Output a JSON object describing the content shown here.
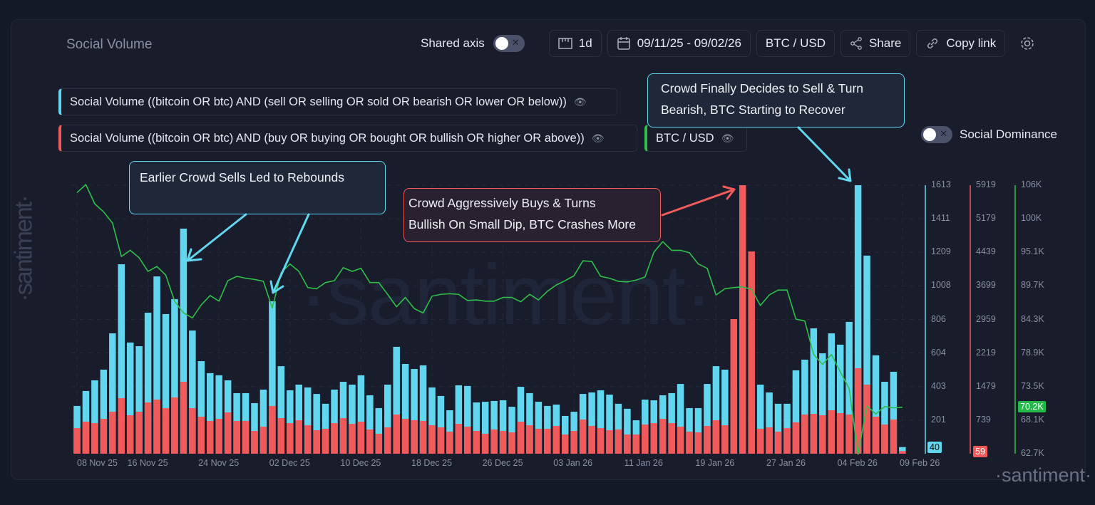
{
  "header": {
    "title": "Social Volume",
    "shared_axis_label": "Shared axis",
    "shared_axis_on": false,
    "interval": "1d",
    "date_range": "09/11/25 - 09/02/26",
    "pair": "BTC / USD",
    "share_label": "Share",
    "copy_link_label": "Copy link"
  },
  "legend": [
    {
      "label": "Social Volume ((bitcoin OR btc) AND (sell OR selling OR sold OR bearish OR lower OR below))",
      "color": "#62d6ef"
    },
    {
      "label": "Social Volume ((bitcoin OR btc) AND (buy OR buying OR bought OR bullish OR higher OR above))",
      "color": "#f05a5a"
    },
    {
      "label": "BTC / USD",
      "color": "#2fbf4a"
    }
  ],
  "social_dominance": {
    "label": "Social Dominance",
    "on": false
  },
  "annotations": [
    {
      "text": "Earlier Crowd Sells Led to Rebounds",
      "color": "#62d6ef"
    },
    {
      "text": "Crowd Aggressively Buys & Turns Bullish On Small Dip, BTC Crashes More",
      "line1": "Crowd Aggressively Buys & Turns",
      "line2": "Bullish On Small Dip, BTC Crashes More",
      "color": "#f05a5a"
    },
    {
      "text": "Crowd Finally Decides to Sell & Turn Bearish, BTC Starting to Recover",
      "line1": "Crowd Finally Decides to Sell & Turn",
      "line2": "Bearish, BTC Starting to Recover",
      "color": "#62d6ef"
    }
  ],
  "watermark": "·santiment·",
  "chart_data": {
    "type": "bar",
    "grid": true,
    "x_tick_labels": [
      "08 Nov 25",
      "16 Nov 25",
      "24 Nov 25",
      "02 Dec 25",
      "10 Dec 25",
      "18 Dec 25",
      "26 Dec 25",
      "03 Jan 26",
      "11 Jan 26",
      "19 Jan 26",
      "27 Jan 26",
      "04 Feb 26",
      "09 Feb 26"
    ],
    "x_tick_dates": [
      "2025-11-08",
      "2025-11-16",
      "2025-11-24",
      "2025-12-02",
      "2025-12-10",
      "2025-12-18",
      "2025-12-26",
      "2026-01-03",
      "2026-01-11",
      "2026-01-19",
      "2026-01-27",
      "2026-02-04",
      "2026-02-09"
    ],
    "dates": [
      "2025-11-08",
      "2025-11-09",
      "2025-11-10",
      "2025-11-11",
      "2025-11-12",
      "2025-11-13",
      "2025-11-14",
      "2025-11-15",
      "2025-11-16",
      "2025-11-17",
      "2025-11-18",
      "2025-11-19",
      "2025-11-20",
      "2025-11-21",
      "2025-11-22",
      "2025-11-23",
      "2025-11-24",
      "2025-11-25",
      "2025-11-26",
      "2025-11-27",
      "2025-11-28",
      "2025-11-29",
      "2025-11-30",
      "2025-12-01",
      "2025-12-02",
      "2025-12-03",
      "2025-12-04",
      "2025-12-05",
      "2025-12-06",
      "2025-12-07",
      "2025-12-08",
      "2025-12-09",
      "2025-12-10",
      "2025-12-11",
      "2025-12-12",
      "2025-12-13",
      "2025-12-14",
      "2025-12-15",
      "2025-12-16",
      "2025-12-17",
      "2025-12-18",
      "2025-12-19",
      "2025-12-20",
      "2025-12-21",
      "2025-12-22",
      "2025-12-23",
      "2025-12-24",
      "2025-12-25",
      "2025-12-26",
      "2025-12-27",
      "2025-12-28",
      "2025-12-29",
      "2025-12-30",
      "2025-12-31",
      "2026-01-01",
      "2026-01-02",
      "2026-01-03",
      "2026-01-04",
      "2026-01-05",
      "2026-01-06",
      "2026-01-07",
      "2026-01-08",
      "2026-01-09",
      "2026-01-10",
      "2026-01-11",
      "2026-01-12",
      "2026-01-13",
      "2026-01-14",
      "2026-01-15",
      "2026-01-16",
      "2026-01-17",
      "2026-01-18",
      "2026-01-19",
      "2026-01-20",
      "2026-01-21",
      "2026-01-22",
      "2026-01-23",
      "2026-01-24",
      "2026-01-25",
      "2026-01-26",
      "2026-01-27",
      "2026-01-28",
      "2026-01-29",
      "2026-01-30",
      "2026-01-31",
      "2026-02-01",
      "2026-02-02",
      "2026-02-03",
      "2026-02-04",
      "2026-02-05",
      "2026-02-06",
      "2026-02-07",
      "2026-02-08",
      "2026-02-09"
    ],
    "series": [
      {
        "name": "Social Volume ((bitcoin OR btc) AND (sell OR selling OR sold OR bearish OR lower OR below))",
        "type": "bar",
        "color": "#62d6ef",
        "axis": "cyan",
        "ylim": [
          0,
          1613
        ],
        "ticks": [
          "1613",
          "1411",
          "1209",
          "1008",
          "806",
          "604",
          "403",
          "201",
          "0"
        ],
        "last_value_label": "40",
        "values": [
          287,
          377,
          441,
          505,
          723,
          1138,
          668,
          646,
          847,
          1065,
          839,
          929,
          1352,
          740,
          556,
          484,
          471,
          441,
          364,
          364,
          304,
          385,
          916,
          526,
          381,
          415,
          398,
          359,
          300,
          385,
          432,
          415,
          471,
          351,
          274,
          415,
          642,
          539,
          509,
          531,
          398,
          347,
          261,
          411,
          407,
          308,
          312,
          317,
          321,
          282,
          402,
          364,
          312,
          287,
          295,
          227,
          252,
          359,
          368,
          381,
          355,
          300,
          270,
          201,
          325,
          321,
          351,
          364,
          419,
          274,
          274,
          419,
          526,
          505,
          381,
          325,
          321,
          415,
          368,
          300,
          300,
          501,
          565,
          753,
          603,
          723,
          655,
          792,
          1613,
          1190,
          591,
          432,
          492,
          40
        ]
      },
      {
        "name": "Social Volume ((bitcoin OR btc) AND (buy OR buying OR bought OR bullish OR higher OR above))",
        "type": "bar",
        "color": "#f05a5a",
        "axis": "red",
        "ylim": [
          0,
          5919
        ],
        "ticks": [
          "5919",
          "5179",
          "4439",
          "3699",
          "2959",
          "2219",
          "1479",
          "739"
        ],
        "last_value_label": "59",
        "values": [
          565,
          707,
          675,
          769,
          926,
          1225,
          848,
          926,
          1130,
          1193,
          1005,
          1240,
          1586,
          1005,
          816,
          722,
          769,
          911,
          722,
          722,
          502,
          597,
          1052,
          785,
          675,
          738,
          628,
          518,
          550,
          675,
          785,
          659,
          707,
          534,
          440,
          581,
          864,
          769,
          738,
          722,
          628,
          581,
          487,
          659,
          597,
          502,
          440,
          534,
          502,
          471,
          707,
          628,
          550,
          550,
          612,
          424,
          502,
          754,
          612,
          565,
          518,
          534,
          424,
          424,
          644,
          675,
          769,
          675,
          597,
          487,
          471,
          612,
          738,
          628,
          2967,
          5919,
          4459,
          550,
          581,
          487,
          565,
          691,
          864,
          879,
          848,
          958,
          895,
          864,
          1884,
          1523,
          816,
          644,
          754,
          59
        ]
      },
      {
        "name": "BTC / USD",
        "type": "line",
        "color": "#2fbf4a",
        "axis": "green",
        "unit": "K",
        "ylim": [
          62.7,
          106
        ],
        "ticks": [
          "106K",
          "100K",
          "95.1K",
          "89.7K",
          "84.3K",
          "78.9K",
          "73.5K",
          "68.1K",
          "62.7K"
        ],
        "last_value_label": "70.2K",
        "values": [
          104.8,
          106.1,
          103.0,
          101.7,
          99.9,
          94.5,
          95.5,
          94.3,
          92.1,
          92.9,
          91.5,
          87.3,
          85.4,
          84.6,
          86.7,
          88.2,
          87.3,
          90.6,
          91.3,
          91.0,
          90.8,
          90.5,
          86.2,
          91.9,
          93.3,
          92.1,
          89.5,
          89.3,
          90.3,
          90.6,
          92.7,
          92.1,
          92.6,
          90.3,
          90.3,
          88.4,
          86.4,
          87.9,
          86.1,
          85.4,
          88.1,
          88.4,
          88.5,
          88.4,
          87.4,
          87.5,
          87.3,
          87.3,
          87.9,
          87.9,
          87.2,
          88.4,
          87.5,
          88.9,
          89.9,
          90.6,
          91.4,
          93.8,
          93.7,
          91.3,
          91.0,
          90.5,
          90.4,
          90.7,
          91.2,
          95.2,
          96.9,
          95.5,
          95.5,
          95.1,
          93.3,
          92.6,
          88.3,
          89.3,
          89.5,
          89.6,
          89.2,
          86.6,
          88.3,
          89.1,
          89.1,
          84.4,
          84.1,
          78.7,
          77.1,
          78.7,
          75.9,
          73.2,
          62.6,
          70.4,
          69.1,
          70.3,
          70.1,
          70.2
        ]
      }
    ]
  }
}
